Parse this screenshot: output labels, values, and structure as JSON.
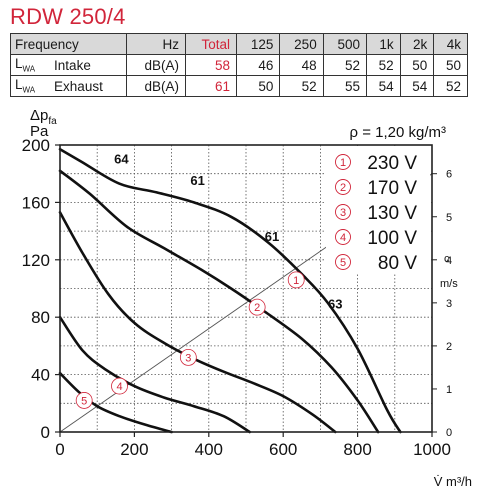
{
  "title": "RDW 250/4",
  "table": {
    "header": {
      "label": "Frequency",
      "unit": "Hz",
      "total": "Total",
      "bands": [
        "125",
        "250",
        "500",
        "1k",
        "2k",
        "4k"
      ]
    },
    "rows": [
      {
        "symbol": "L",
        "symbol_sub": "WA",
        "label": "Intake",
        "unit": "dB(A)",
        "total": "58",
        "values": [
          "46",
          "48",
          "52",
          "52",
          "50",
          "50"
        ]
      },
      {
        "symbol": "L",
        "symbol_sub": "WA",
        "label": "Exhaust",
        "unit": "dB(A)",
        "total": "61",
        "values": [
          "50",
          "52",
          "55",
          "54",
          "54",
          "52"
        ]
      }
    ]
  },
  "colors": {
    "accent": "#d1253a",
    "grid": "#555555",
    "curve": "#111111",
    "header_bg": "#d9d9d9"
  },
  "chart_data": {
    "type": "line",
    "xlabel": "V̇ m³/h",
    "ylabel_top": "Δp",
    "ylabel_sub": "fa",
    "ylabel_unit": "Pa",
    "density": "ρ = 1,20 kg/m³",
    "xlim": [
      0,
      1000
    ],
    "ylim": [
      0,
      200
    ],
    "x_ticks": [
      0,
      200,
      400,
      600,
      800,
      1000
    ],
    "y_ticks": [
      0,
      40,
      80,
      120,
      160,
      200
    ],
    "grid": true,
    "right_axis": {
      "label": "c",
      "unit": "m/s",
      "ticks": [
        0,
        1,
        2,
        3,
        4,
        5,
        6
      ],
      "line": {
        "from_velocity": 0,
        "to_velocity": 6
      }
    },
    "legend": [
      {
        "marker": "①",
        "text": "230 V"
      },
      {
        "marker": "②",
        "text": "170 V"
      },
      {
        "marker": "③",
        "text": "130 V"
      },
      {
        "marker": "④",
        "text": "100 V"
      },
      {
        "marker": "⑤",
        "text": "80 V"
      }
    ],
    "series": [
      {
        "name": "230 V",
        "marker": "①",
        "marker_at": [
          635,
          106
        ],
        "points": [
          [
            0,
            197
          ],
          [
            60,
            188
          ],
          [
            160,
            173
          ],
          [
            260,
            167
          ],
          [
            360,
            160
          ],
          [
            460,
            150
          ],
          [
            560,
            132
          ],
          [
            650,
            110
          ],
          [
            720,
            90
          ],
          [
            800,
            58
          ],
          [
            880,
            15
          ],
          [
            915,
            0
          ]
        ]
      },
      {
        "name": "170 V",
        "marker": "②",
        "marker_at": [
          530,
          87
        ],
        "points": [
          [
            0,
            182
          ],
          [
            80,
            166
          ],
          [
            180,
            143
          ],
          [
            280,
            128
          ],
          [
            380,
            113
          ],
          [
            460,
            100
          ],
          [
            550,
            84
          ],
          [
            650,
            65
          ],
          [
            730,
            45
          ],
          [
            800,
            22
          ],
          [
            855,
            0
          ]
        ]
      },
      {
        "name": "130 V",
        "marker": "③",
        "marker_at": [
          345,
          52
        ],
        "points": [
          [
            0,
            153
          ],
          [
            60,
            125
          ],
          [
            130,
            96
          ],
          [
            200,
            76
          ],
          [
            280,
            62
          ],
          [
            360,
            51
          ],
          [
            440,
            42
          ],
          [
            520,
            34
          ],
          [
            600,
            25
          ],
          [
            680,
            12
          ],
          [
            740,
            0
          ]
        ]
      },
      {
        "name": "100 V",
        "marker": "④",
        "marker_at": [
          160,
          32
        ],
        "points": [
          [
            0,
            80
          ],
          [
            60,
            57
          ],
          [
            120,
            44
          ],
          [
            200,
            32
          ],
          [
            280,
            24
          ],
          [
            360,
            18
          ],
          [
            440,
            11
          ],
          [
            510,
            0
          ]
        ]
      },
      {
        "name": "80 V",
        "marker": "⑤",
        "marker_at": [
          65,
          22
        ],
        "points": [
          [
            0,
            41
          ],
          [
            50,
            28
          ],
          [
            100,
            18
          ],
          [
            160,
            11
          ],
          [
            230,
            5
          ],
          [
            300,
            0
          ]
        ]
      }
    ],
    "annotations": [
      {
        "text": "64",
        "x": 165,
        "y": 187
      },
      {
        "text": "61",
        "x": 370,
        "y": 172
      },
      {
        "text": "61",
        "x": 570,
        "y": 133
      },
      {
        "text": "63",
        "x": 740,
        "y": 86
      }
    ]
  }
}
